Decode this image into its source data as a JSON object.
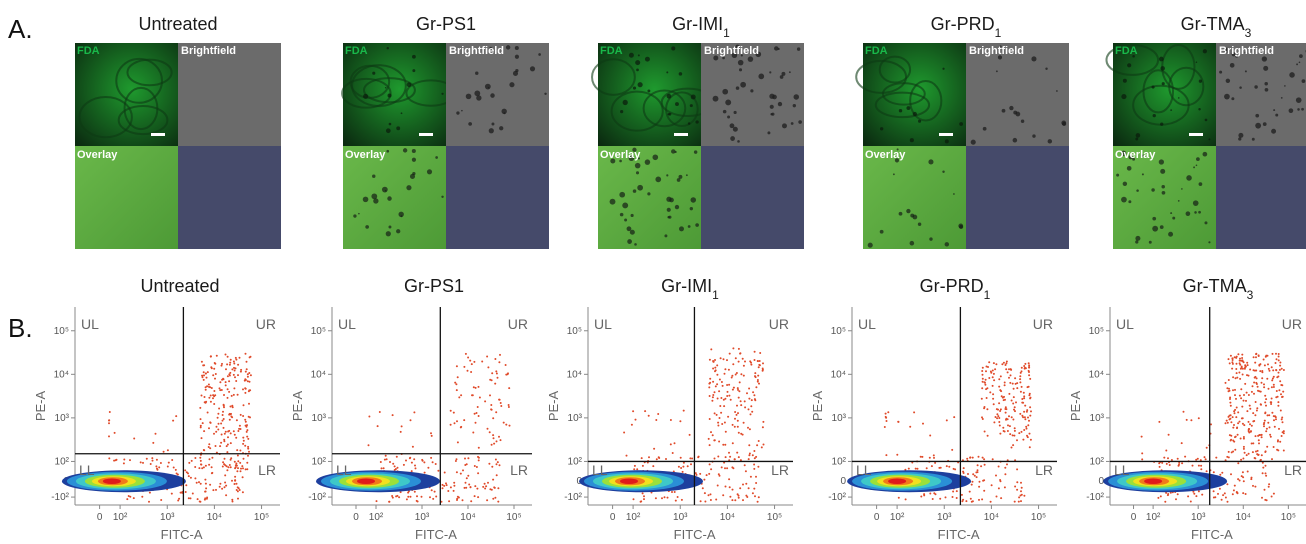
{
  "figure": {
    "panel_a_letter": "A.",
    "panel_b_letter": "B.",
    "conditions": [
      {
        "title": "Untreated",
        "title_main": "Untreated",
        "title_sub": ""
      },
      {
        "title": "Gr-PS1",
        "title_main": "Gr-PS1",
        "title_sub": ""
      },
      {
        "title": "Gr-IMI1",
        "title_main": "Gr-IMI",
        "title_sub": "1"
      },
      {
        "title": "Gr-PRD1",
        "title_main": "Gr-PRD",
        "title_sub": "1"
      },
      {
        "title": "Gr-TMA3",
        "title_main": "Gr-TMA",
        "title_sub": "3"
      }
    ],
    "microscopy": {
      "channel_labels": {
        "fda": "FDA",
        "brightfield": "Brightfield",
        "overlay": "Overlay"
      },
      "colors": {
        "fda": "#1f9a2e",
        "fda_dark": "#0b2a10",
        "brightfield": "#6b6b6b",
        "overlay": "#6ab84a",
        "empty_quadrant": "#454a6a",
        "scale_bar": "#ffffff",
        "fda_label": "#19b84a",
        "white_label": "#ffffff"
      },
      "particle_density": [
        0,
        0.35,
        0.6,
        0.25,
        0.55
      ]
    },
    "flow_cytometry": {
      "x_axis_title": "FITC-A",
      "y_axis_title": "PE-A",
      "quadrant_labels": {
        "ul": "UL",
        "ur": "UR",
        "ll": "LL",
        "lr": "LR"
      },
      "x_tick_labels": [
        "0",
        "10²",
        "10³",
        "10⁴",
        "10⁵"
      ],
      "y_tick_labels": [
        "10⁵",
        "10⁴",
        "10³",
        "10²",
        "0",
        "-10²"
      ],
      "colors": {
        "dots": "#e04a2a",
        "density": [
          "#1d3f9e",
          "#2a8fd6",
          "#3ec8c8",
          "#9be03a",
          "#f2e01e",
          "#f07a1a",
          "#e01a1a"
        ],
        "gate_line": "#111111",
        "axis": "#888888"
      }
    }
  },
  "chart_data": [
    {
      "type": "scatter",
      "title": "Untreated",
      "xlabel": "FITC-A",
      "ylabel": "PE-A",
      "x_scale": "biexponential",
      "y_scale": "biexponential",
      "xlim": [
        -100,
        200000
      ],
      "ylim": [
        -200,
        200000
      ],
      "quadrant_gate": {
        "x": 2200,
        "y": 150
      },
      "main_population_center": {
        "x": 60,
        "y": 0
      },
      "ur_cluster": {
        "x_range": [
          5000,
          60000
        ],
        "y_range": [
          50,
          30000
        ],
        "relative_count": 0.75
      },
      "grid": false,
      "legend": "none"
    },
    {
      "type": "scatter",
      "title": "Gr-PS1",
      "xlabel": "FITC-A",
      "ylabel": "PE-A",
      "x_scale": "biexponential",
      "y_scale": "biexponential",
      "xlim": [
        -100,
        200000
      ],
      "ylim": [
        -200,
        200000
      ],
      "quadrant_gate": {
        "x": 2500,
        "y": 150
      },
      "main_population_center": {
        "x": 50,
        "y": 0
      },
      "ur_cluster": {
        "x_range": [
          4000,
          80000
        ],
        "y_range": [
          200,
          30000
        ],
        "relative_count": 0.25
      },
      "grid": false,
      "legend": "none"
    },
    {
      "type": "scatter",
      "title": "Gr-IMI1",
      "xlabel": "FITC-A",
      "ylabel": "PE-A",
      "x_scale": "biexponential",
      "y_scale": "biexponential",
      "xlim": [
        -100,
        200000
      ],
      "ylim": [
        -200,
        200000
      ],
      "quadrant_gate": {
        "x": 2000,
        "y": 100
      },
      "main_population_center": {
        "x": 80,
        "y": 0
      },
      "ur_cluster": {
        "x_range": [
          4000,
          60000
        ],
        "y_range": [
          100,
          40000
        ],
        "relative_count": 0.5
      },
      "grid": false,
      "legend": "none"
    },
    {
      "type": "scatter",
      "title": "Gr-PRD1",
      "xlabel": "FITC-A",
      "ylabel": "PE-A",
      "x_scale": "biexponential",
      "y_scale": "biexponential",
      "xlim": [
        -100,
        200000
      ],
      "ylim": [
        -200,
        200000
      ],
      "quadrant_gate": {
        "x": 2200,
        "y": 100
      },
      "main_population_center": {
        "x": 100,
        "y": 0
      },
      "ur_cluster": {
        "x_range": [
          6000,
          70000
        ],
        "y_range": [
          200,
          20000
        ],
        "relative_count": 0.55
      },
      "grid": false,
      "legend": "none"
    },
    {
      "type": "scatter",
      "title": "Gr-TMA3",
      "xlabel": "FITC-A",
      "ylabel": "PE-A",
      "x_scale": "biexponential",
      "y_scale": "biexponential",
      "xlim": [
        -100,
        200000
      ],
      "ylim": [
        -200,
        200000
      ],
      "quadrant_gate": {
        "x": 1800,
        "y": 100
      },
      "main_population_center": {
        "x": 100,
        "y": 0
      },
      "ur_cluster": {
        "x_range": [
          4000,
          80000
        ],
        "y_range": [
          100,
          30000
        ],
        "relative_count": 0.9
      },
      "grid": false,
      "legend": "none"
    }
  ]
}
